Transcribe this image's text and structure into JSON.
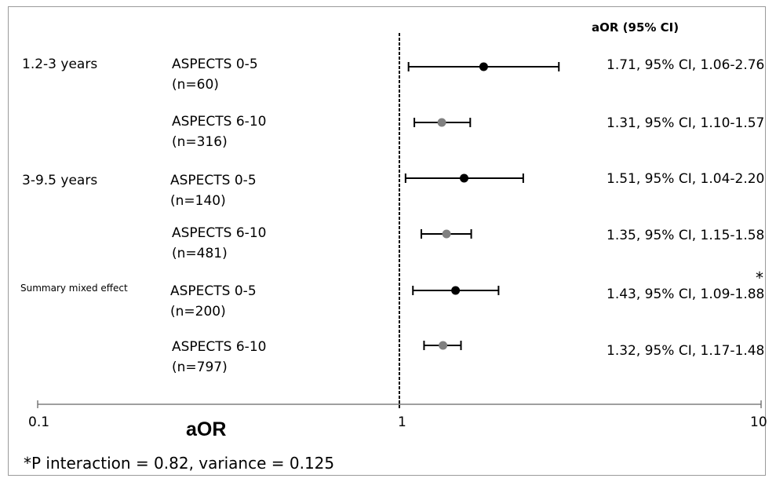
{
  "chart_data": {
    "type": "forest",
    "x_scale": "log",
    "xlim": [
      0.1,
      10
    ],
    "x_ticks": [
      "0.1",
      "1",
      "10"
    ],
    "reference_line": 1,
    "xlabel": "aOR",
    "ci_column_header": "aOR (95% CI)",
    "groups": [
      {
        "label": "1.2-3 years",
        "rows": [
          {
            "subgroup": "ASPECTS 0-5",
            "n": "(n=60)",
            "or": 1.71,
            "lo": 1.06,
            "hi": 2.76,
            "ci_text": "1.71, 95% CI, 1.06-2.76",
            "marker_color": "#000000"
          },
          {
            "subgroup": "ASPECTS 6-10",
            "n": "(n=316)",
            "or": 1.31,
            "lo": 1.1,
            "hi": 1.57,
            "ci_text": "1.31, 95% CI, 1.10-1.57",
            "marker_color": "#808080"
          }
        ]
      },
      {
        "label": "3-9.5 years",
        "rows": [
          {
            "subgroup": "ASPECTS 0-5",
            "n": "(n=140)",
            "or": 1.51,
            "lo": 1.04,
            "hi": 2.2,
            "ci_text": "1.51, 95% CI, 1.04-2.20",
            "marker_color": "#000000"
          },
          {
            "subgroup": "ASPECTS 6-10",
            "n": "(n=481)",
            "or": 1.35,
            "lo": 1.15,
            "hi": 1.58,
            "ci_text": "1.35, 95% CI, 1.15-1.58",
            "marker_color": "#808080"
          }
        ]
      },
      {
        "label": "Summary mixed effect",
        "rows": [
          {
            "subgroup": "ASPECTS 0-5",
            "n": "(n=200)",
            "or": 1.43,
            "lo": 1.09,
            "hi": 1.88,
            "ci_text": "1.43, 95% CI, 1.09-1.88",
            "marker_color": "#000000"
          },
          {
            "subgroup": "ASPECTS 6-10",
            "n": "(n=797)",
            "or": 1.32,
            "lo": 1.17,
            "hi": 1.48,
            "ci_text": "1.32, 95% CI, 1.17-1.48",
            "marker_color": "#808080"
          }
        ]
      }
    ],
    "asterisk": "*",
    "footnote": "*P interaction = 0.82, variance = 0.125"
  }
}
